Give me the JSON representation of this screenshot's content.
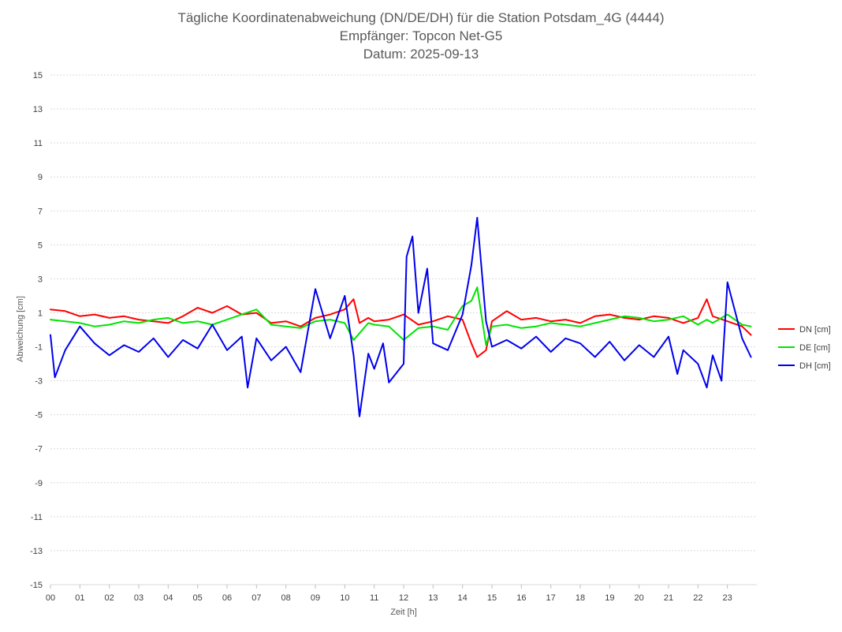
{
  "chart_data": {
    "type": "line",
    "title": "Tägliche Koordinatenabweichung (DN/DE/DH) für die Station Potsdam_4G (4444)",
    "subtitle": "Empfänger: Topcon Net-G5",
    "date_line": "Datum: 2025-09-13",
    "xlabel": "Zeit [h]",
    "ylabel": "Abweichung [cm]",
    "ylim": [
      -15,
      15
    ],
    "xlim": [
      0,
      24
    ],
    "grid": true,
    "legend_position": "right",
    "y_ticks": [
      "15",
      "13",
      "11",
      "9",
      "7",
      "5",
      "3",
      "1",
      "-1",
      "-3",
      "-5",
      "-7",
      "-9",
      "-11",
      "-13",
      "-15"
    ],
    "x_ticks": [
      "00",
      "01",
      "02",
      "03",
      "04",
      "05",
      "06",
      "07",
      "08",
      "09",
      "10",
      "11",
      "12",
      "13",
      "14",
      "15",
      "16",
      "17",
      "18",
      "19",
      "20",
      "21",
      "22",
      "23"
    ],
    "series": [
      {
        "name": "DN [cm]",
        "color": "#ff0000",
        "x": [
          0,
          0.5,
          1,
          1.5,
          2,
          2.5,
          3,
          3.5,
          4,
          4.5,
          5,
          5.5,
          6,
          6.5,
          7,
          7.5,
          8,
          8.5,
          9,
          9.5,
          10,
          10.3,
          10.5,
          10.8,
          11,
          11.5,
          12,
          12.5,
          13,
          13.5,
          14,
          14.3,
          14.5,
          14.8,
          15,
          15.5,
          16,
          16.5,
          17,
          17.5,
          18,
          18.5,
          19,
          19.5,
          20,
          20.5,
          21,
          21.5,
          22,
          22.3,
          22.5,
          23,
          23.5,
          23.8
        ],
        "values": [
          1.2,
          1.1,
          0.8,
          0.9,
          0.7,
          0.8,
          0.6,
          0.5,
          0.4,
          0.8,
          1.3,
          1.0,
          1.4,
          0.9,
          1.0,
          0.4,
          0.5,
          0.2,
          0.7,
          0.9,
          1.2,
          1.8,
          0.4,
          0.7,
          0.5,
          0.6,
          0.9,
          0.3,
          0.5,
          0.8,
          0.6,
          -0.8,
          -1.6,
          -1.2,
          0.5,
          1.1,
          0.6,
          0.7,
          0.5,
          0.6,
          0.4,
          0.8,
          0.9,
          0.7,
          0.6,
          0.8,
          0.7,
          0.4,
          0.7,
          1.8,
          0.8,
          0.5,
          0.2,
          -0.3
        ]
      },
      {
        "name": "DE [cm]",
        "color": "#00e400",
        "x": [
          0,
          0.5,
          1,
          1.5,
          2,
          2.5,
          3,
          3.5,
          4,
          4.5,
          5,
          5.5,
          6,
          6.5,
          7,
          7.5,
          8,
          8.5,
          9,
          9.5,
          10,
          10.3,
          10.5,
          10.8,
          11,
          11.5,
          12,
          12.5,
          13,
          13.5,
          14,
          14.3,
          14.5,
          14.8,
          15,
          15.5,
          16,
          16.5,
          17,
          17.5,
          18,
          18.5,
          19,
          19.5,
          20,
          20.5,
          21,
          21.5,
          22,
          22.3,
          22.5,
          23,
          23.5,
          23.8
        ],
        "values": [
          0.6,
          0.5,
          0.4,
          0.2,
          0.3,
          0.5,
          0.4,
          0.6,
          0.7,
          0.4,
          0.5,
          0.3,
          0.6,
          0.9,
          1.2,
          0.3,
          0.2,
          0.1,
          0.5,
          0.6,
          0.4,
          -0.6,
          -0.2,
          0.4,
          0.3,
          0.2,
          -0.6,
          0.1,
          0.2,
          0.0,
          1.4,
          1.7,
          2.5,
          -0.9,
          0.2,
          0.3,
          0.1,
          0.2,
          0.4,
          0.3,
          0.2,
          0.4,
          0.6,
          0.8,
          0.7,
          0.5,
          0.6,
          0.8,
          0.3,
          0.6,
          0.4,
          0.9,
          0.3,
          0.2
        ]
      },
      {
        "name": "DH [cm]",
        "color": "#0000ee",
        "x": [
          0,
          0.15,
          0.5,
          1,
          1.5,
          2,
          2.5,
          3,
          3.5,
          4,
          4.5,
          5,
          5.5,
          6,
          6.5,
          6.7,
          7,
          7.5,
          8,
          8.5,
          9,
          9.5,
          10,
          10.3,
          10.5,
          10.8,
          11,
          11.3,
          11.5,
          12,
          12.1,
          12.3,
          12.5,
          12.8,
          13,
          13.5,
          14,
          14.3,
          14.5,
          14.8,
          15,
          15.5,
          16,
          16.5,
          17,
          17.5,
          18,
          18.5,
          19,
          19.5,
          20,
          20.5,
          21,
          21.3,
          21.5,
          22,
          22.3,
          22.5,
          22.8,
          23,
          23.5,
          23.8
        ],
        "values": [
          -0.3,
          -2.8,
          -1.2,
          0.2,
          -0.8,
          -1.5,
          -0.9,
          -1.3,
          -0.5,
          -1.6,
          -0.6,
          -1.1,
          0.3,
          -1.2,
          -0.4,
          -3.4,
          -0.5,
          -1.8,
          -1.0,
          -2.5,
          2.4,
          -0.5,
          2.0,
          -1.5,
          -5.1,
          -1.4,
          -2.3,
          -0.8,
          -3.1,
          -2.0,
          4.3,
          5.5,
          1.0,
          3.6,
          -0.8,
          -1.2,
          0.9,
          3.8,
          6.6,
          0.5,
          -1.0,
          -0.6,
          -1.1,
          -0.4,
          -1.3,
          -0.5,
          -0.8,
          -1.6,
          -0.7,
          -1.8,
          -0.9,
          -1.6,
          -0.4,
          -2.6,
          -1.2,
          -2.0,
          -3.4,
          -1.5,
          -3.0,
          2.8,
          -0.5,
          -1.6
        ]
      }
    ]
  }
}
